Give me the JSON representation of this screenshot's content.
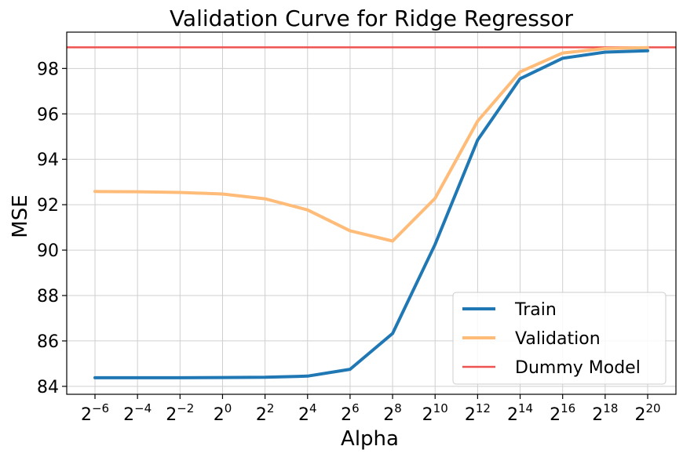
{
  "chart_data": {
    "type": "line",
    "title": "Validation Curve for Ridge Regressor",
    "xlabel": "Alpha",
    "ylabel": "MSE",
    "x_scale": "log2",
    "x_ticks": [
      {
        "base": "2",
        "exp": "−6"
      },
      {
        "base": "2",
        "exp": "−4"
      },
      {
        "base": "2",
        "exp": "−2"
      },
      {
        "base": "2",
        "exp": "0"
      },
      {
        "base": "2",
        "exp": "2"
      },
      {
        "base": "2",
        "exp": "4"
      },
      {
        "base": "2",
        "exp": "6"
      },
      {
        "base": "2",
        "exp": "8"
      },
      {
        "base": "2",
        "exp": "10"
      },
      {
        "base": "2",
        "exp": "12"
      },
      {
        "base": "2",
        "exp": "14"
      },
      {
        "base": "2",
        "exp": "16"
      },
      {
        "base": "2",
        "exp": "18"
      },
      {
        "base": "2",
        "exp": "20"
      }
    ],
    "x": [
      0.015625,
      0.0625,
      0.25,
      1,
      4,
      16,
      64,
      256,
      1024,
      4096,
      16384,
      65536,
      262144,
      1048576
    ],
    "y_ticks": [
      "84",
      "86",
      "88",
      "90",
      "92",
      "94",
      "96",
      "98"
    ],
    "ylim": [
      83.65,
      99.6
    ],
    "grid": true,
    "legend_position": "lower-right",
    "series": [
      {
        "name": "Train",
        "color": "#1f77b4",
        "values": [
          84.38,
          84.38,
          84.38,
          84.39,
          84.4,
          84.45,
          84.75,
          86.33,
          90.25,
          94.85,
          97.55,
          98.45,
          98.72,
          98.78
        ]
      },
      {
        "name": "Validation",
        "color": "#ffbb78",
        "values": [
          92.58,
          92.57,
          92.54,
          92.47,
          92.26,
          91.77,
          90.85,
          90.4,
          92.28,
          95.68,
          97.85,
          98.68,
          98.88,
          98.92
        ]
      }
    ],
    "reference_line": {
      "name": "Dummy Model",
      "color": "#ef5350",
      "value": 98.93
    }
  }
}
